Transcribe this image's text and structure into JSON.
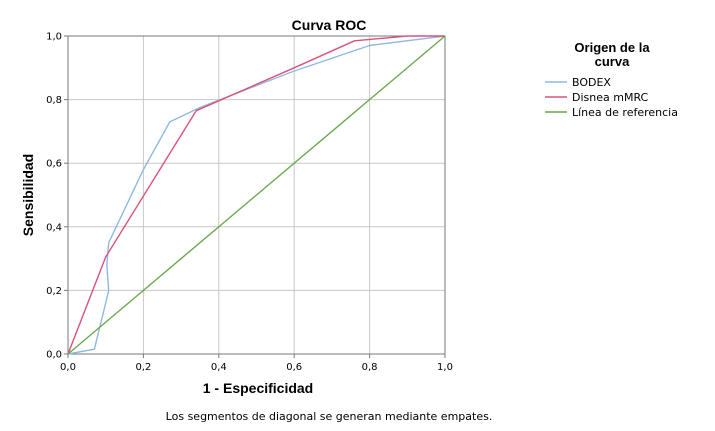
{
  "chart_data": {
    "type": "line",
    "title": "Curva ROC",
    "xlabel": "1 - Especificidad",
    "ylabel": "Sensibilidad",
    "xlim": [
      0,
      1
    ],
    "ylim": [
      0,
      1
    ],
    "xticks": [
      "0,0",
      "0,2",
      "0,4",
      "0,6",
      "0,8",
      "1,0"
    ],
    "yticks": [
      "0,0",
      "0,2",
      "0,4",
      "0,6",
      "0,8",
      "1,0"
    ],
    "grid": true,
    "legend": {
      "title": "Origen de la curva",
      "title_lines": [
        "Origen de la",
        "curva"
      ],
      "position": "right"
    },
    "series": [
      {
        "name": "BODEX",
        "color": "#8fb9e3",
        "x": [
          0.0,
          0.07,
          0.1,
          0.108,
          0.103,
          0.108,
          0.2,
          0.27,
          0.35,
          0.6,
          0.8,
          1.0
        ],
        "y": [
          0.0,
          0.015,
          0.16,
          0.2,
          0.28,
          0.35,
          0.58,
          0.73,
          0.775,
          0.89,
          0.97,
          1.0
        ]
      },
      {
        "name": "Disnea mMRC",
        "color": "#d9527a",
        "x": [
          0.0,
          0.1,
          0.34,
          0.6,
          0.76,
          0.9,
          1.0
        ],
        "y": [
          0.0,
          0.305,
          0.765,
          0.9,
          0.985,
          1.0,
          1.0
        ]
      },
      {
        "name": "Línea de referencia",
        "color": "#6aa84f",
        "x": [
          0.0,
          1.0
        ],
        "y": [
          0.0,
          1.0
        ]
      }
    ],
    "footnote": "Los segmentos de diagonal se generan mediante empates."
  }
}
